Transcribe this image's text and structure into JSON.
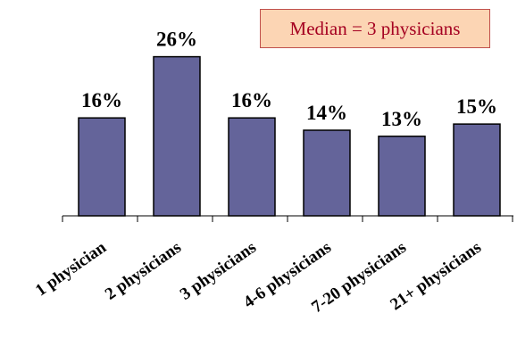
{
  "chart_data": {
    "type": "bar",
    "categories": [
      "1 physician",
      "2 physicians",
      "3 physicians",
      "4-6 physicians",
      "7-20 physicians",
      "21+ physicians"
    ],
    "values": [
      16,
      26,
      16,
      14,
      13,
      15
    ],
    "value_labels": [
      "16%",
      "26%",
      "16%",
      "14%",
      "13%",
      "15%"
    ],
    "annotation": "Median = 3 physicians",
    "title": "",
    "xlabel": "",
    "ylabel": "",
    "ylim": [
      0,
      30
    ],
    "grid": false,
    "legend": "none",
    "colors": {
      "bar_fill": "#64649a",
      "bar_stroke": "#000000",
      "annotation_fill": "#fcd5b4",
      "annotation_border": "#c0504d",
      "annotation_text": "#a50021"
    }
  }
}
